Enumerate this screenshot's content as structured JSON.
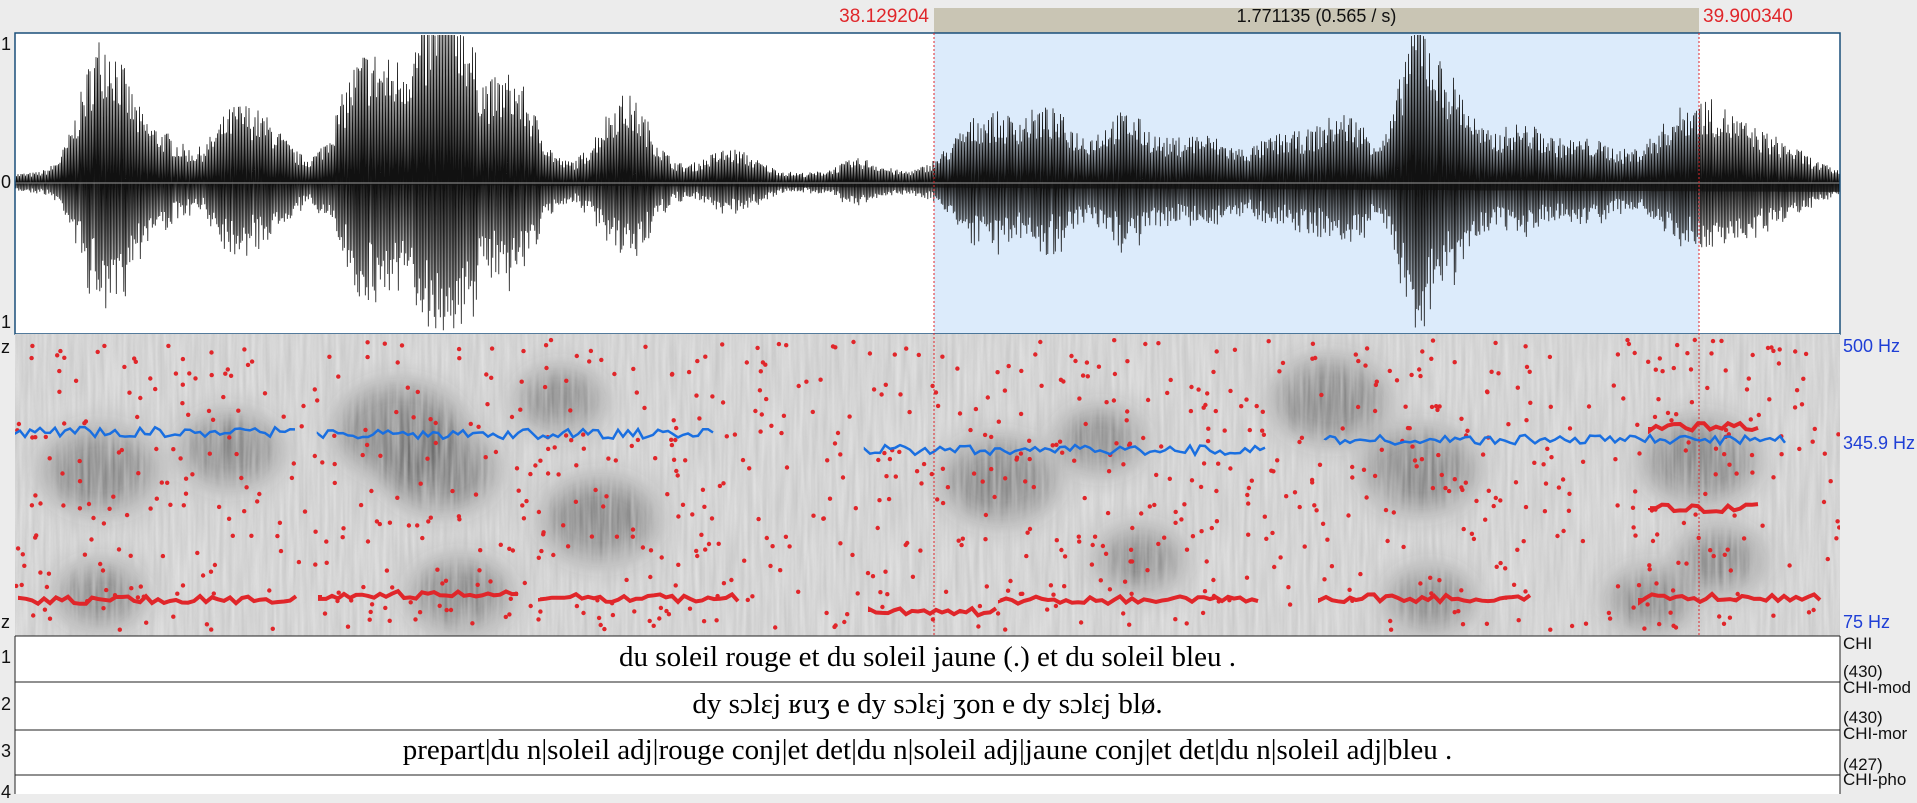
{
  "selection": {
    "start": "38.129204",
    "duration": "1.771135 (0.565 / s)",
    "end": "39.900340"
  },
  "waveform": {
    "axis_labels": [
      "1",
      "0",
      "1"
    ]
  },
  "spectrogram": {
    "axis_labels": [
      "z",
      "z"
    ],
    "freq_labels": [
      "500 Hz",
      "345.9 Hz",
      "75 Hz"
    ]
  },
  "tiers": [
    {
      "number": "1",
      "text": "du soleil rouge et du soleil jaune (.) et du soleil bleu .",
      "label": "CHI",
      "count": "(430)"
    },
    {
      "number": "2",
      "text": "dy sɔlɛj ʁuʒ e dy sɔlɛj ʒon e dy sɔlɛj blø.",
      "label": "CHI-mod",
      "count": "(430)"
    },
    {
      "number": "3",
      "text": "prepart|du n|soleil adj|rouge conj|et det|du n|soleil adj|jaune conj|et det|du n|soleil adj|bleu .",
      "label": "CHI-mor",
      "count": "(427)"
    },
    {
      "number": "4",
      "label": "CHI-pho"
    }
  ]
}
